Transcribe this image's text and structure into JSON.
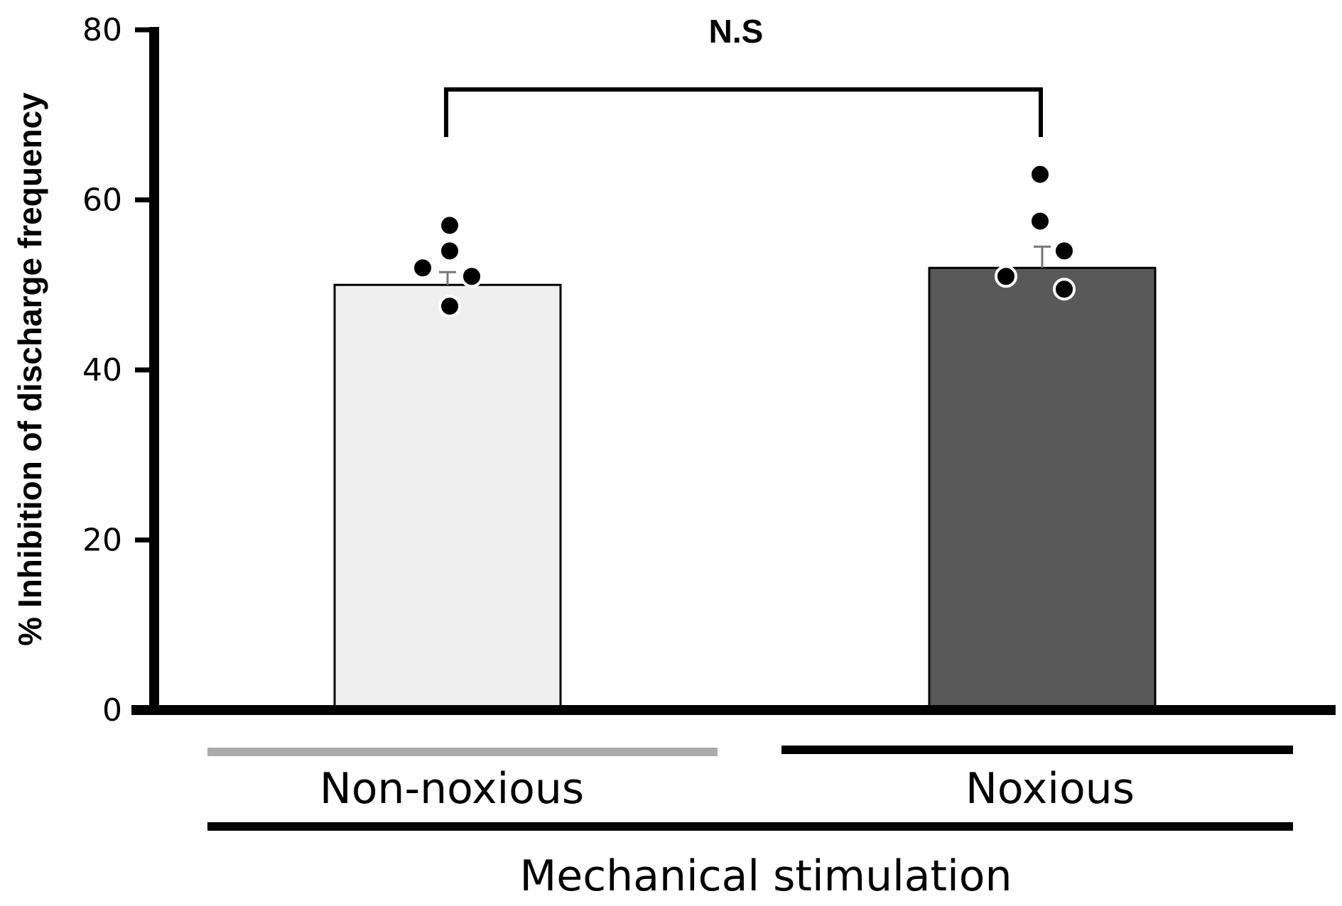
{
  "chart_data": {
    "type": "bar",
    "title": "",
    "xlabel": "Mechanical stimulation",
    "ylabel": "% Inhibition of discharge frequency",
    "ylim": [
      0,
      80
    ],
    "yticks": [
      0,
      20,
      40,
      60,
      80
    ],
    "grid": false,
    "categories": [
      "Non-noxious",
      "Noxious"
    ],
    "values": [
      50,
      52
    ],
    "errors": [
      1.5,
      2.5
    ],
    "bar_colors": [
      "#efefef",
      "#595959"
    ],
    "group_line_colors": [
      "#aaaaaa",
      "#000000"
    ],
    "points": [
      {
        "category": "Non-noxious",
        "values": [
          57,
          54,
          52,
          51,
          47.5
        ]
      },
      {
        "category": "Noxious",
        "values": [
          63,
          57.5,
          54,
          51,
          49.5
        ]
      }
    ],
    "significance": {
      "label": "N.S",
      "between": [
        "Non-noxious",
        "Noxious"
      ]
    }
  }
}
